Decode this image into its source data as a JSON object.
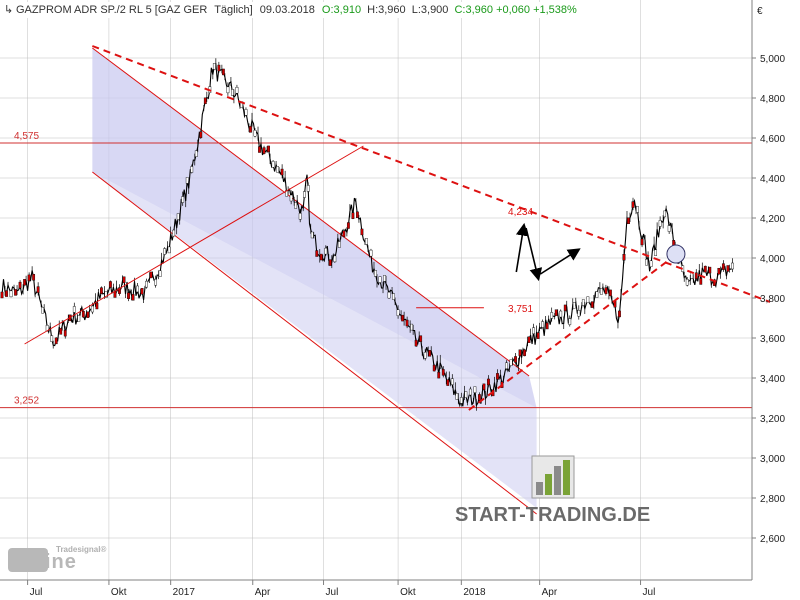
{
  "chart_data": {
    "type": "line",
    "header": {
      "symbol": "GAZPROM ADR SP./2 RL 5 [GAZ GER",
      "period": "Täglich]",
      "date": "09.03.2018",
      "open": "O:3,910",
      "high": "H:3,960",
      "low": "L:3,900",
      "change": "C:3,960 +0,060 +1,538%"
    },
    "currency": "€",
    "ylim": [
      2.5,
      5.3
    ],
    "y_ticks": [
      "5,000",
      "4,800",
      "4,600",
      "4,400",
      "4,200",
      "4,000",
      "3,800",
      "3,600",
      "3,400",
      "3,200",
      "3,000",
      "2,800",
      "2,600"
    ],
    "x_ticks": [
      "Jul",
      "Okt",
      "2017",
      "Apr",
      "Jul",
      "Okt",
      "2018",
      "Apr",
      "Jul"
    ],
    "grid": true,
    "series": [
      {
        "x": [
          0,
          2,
          4,
          6,
          7,
          9,
          11,
          13,
          16,
          19,
          22,
          25,
          28,
          31,
          34,
          37,
          40,
          40.5,
          41,
          42,
          44,
          47,
          49,
          52,
          55,
          58,
          61,
          64,
          67,
          70,
          73,
          76,
          78,
          80,
          82,
          83,
          84,
          86,
          88,
          91,
          93,
          95,
          97
        ],
        "values": [
          3.86,
          3.82,
          3.9,
          3.66,
          3.58,
          3.7,
          3.72,
          3.8,
          3.86,
          3.82,
          4.04,
          4.4,
          4.95,
          4.82,
          4.58,
          4.42,
          4.22,
          4.4,
          4.12,
          4.05,
          4.0,
          4.28,
          3.98,
          3.78,
          3.58,
          3.45,
          3.28,
          3.32,
          3.42,
          3.58,
          3.68,
          3.73,
          3.8,
          3.84,
          3.7,
          4.2,
          4.3,
          3.95,
          4.25,
          3.85,
          3.92,
          3.9,
          3.96
        ]
      }
    ],
    "levels": [
      {
        "label": "4,575",
        "value": 4.575
      },
      {
        "label": "3,252",
        "value": 3.252
      }
    ],
    "annotations": [
      {
        "label": "4,234",
        "value": 4.234
      },
      {
        "label": "3,751",
        "value": 3.751
      }
    ],
    "trend_lines": {
      "resistance": {
        "x": [
          12,
          102
        ],
        "values": [
          5.06,
          3.78
        ]
      },
      "support": {
        "x": [
          62,
          90
        ],
        "values": [
          3.24,
          4.03
        ]
      },
      "upper_channel": {
        "x": [
          12,
          70
        ],
        "values": [
          5.05,
          3.41
        ]
      },
      "lower_channel": {
        "x": [
          12,
          71
        ],
        "values": [
          4.43,
          2.72
        ]
      },
      "thin_line": {
        "x": [
          3,
          48
        ],
        "values": [
          3.57,
          4.56
        ]
      }
    },
    "projection": {
      "x": [
        89.5
      ],
      "values": [
        4.02
      ]
    }
  },
  "colors": {
    "price": "#000000",
    "candle_up": "#ffffff",
    "candle_down": "#cc0000",
    "level": "#d03030",
    "trend": "#dd1111",
    "channel_fill": "#c8c8f0",
    "grid": "#bfbfbf",
    "title_green": "#1a9a1a"
  },
  "watermark": {
    "brand": "START-TRADING.DE",
    "tradesignal": "Tradesignal®",
    "online": "online"
  }
}
